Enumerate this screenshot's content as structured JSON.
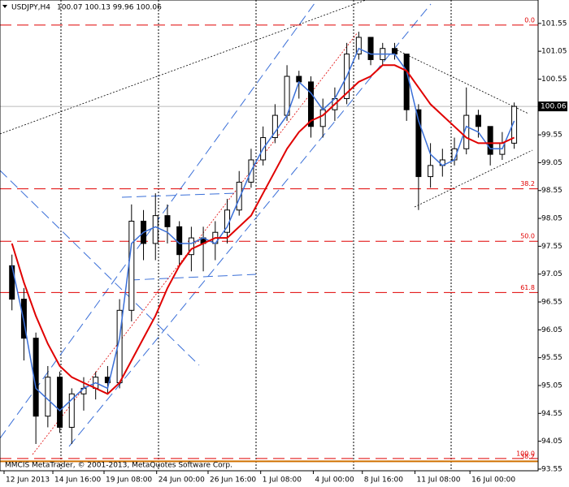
{
  "header": {
    "symbol": "USDJPY,H4",
    "quote": "100.07 100.13 99.96 100.06"
  },
  "footer": "MMCIS MetaTrader, © 2001-2013, MetaQuotes Software Corp.",
  "chart_data": {
    "type": "candlestick",
    "x": [
      1,
      2,
      3,
      4,
      5,
      6,
      7,
      8,
      9,
      10,
      11,
      12,
      13,
      14,
      15,
      16,
      17,
      18,
      19,
      20,
      21,
      22,
      23,
      24,
      25,
      26,
      27,
      28,
      29,
      30,
      31,
      32,
      33,
      34,
      35,
      36,
      37,
      38,
      39,
      40,
      41,
      42,
      43
    ],
    "open": [
      97.2,
      96.6,
      95.9,
      94.5,
      95.2,
      94.3,
      94.9,
      95.0,
      95.2,
      95.1,
      96.4,
      98.0,
      97.6,
      98.1,
      97.9,
      97.4,
      97.7,
      97.6,
      97.8,
      98.2,
      98.7,
      99.1,
      99.5,
      99.9,
      100.6,
      100.5,
      99.7,
      100.0,
      100.2,
      101.0,
      101.3,
      100.9,
      101.1,
      101.0,
      100.0,
      98.8,
      99.0,
      99.1,
      99.3,
      99.9,
      99.7,
      99.2,
      99.4
    ],
    "high": [
      97.4,
      96.8,
      96.0,
      95.4,
      95.3,
      95.0,
      95.2,
      95.3,
      95.4,
      96.6,
      98.3,
      98.2,
      98.5,
      98.3,
      98.0,
      97.9,
      97.9,
      98.0,
      98.4,
      98.9,
      99.3,
      99.7,
      100.1,
      100.8,
      100.7,
      100.6,
      100.2,
      100.4,
      101.2,
      101.4,
      101.3,
      101.2,
      101.2,
      101.0,
      100.1,
      99.4,
      99.3,
      99.5,
      100.4,
      100.0,
      99.7,
      99.6,
      100.13
    ],
    "low": [
      96.4,
      95.5,
      94.0,
      94.3,
      94.2,
      94.0,
      94.6,
      94.8,
      94.9,
      95.0,
      96.2,
      97.3,
      97.3,
      97.6,
      97.2,
      97.1,
      97.1,
      97.3,
      97.6,
      98.1,
      98.6,
      99.0,
      99.4,
      99.8,
      100.2,
      99.5,
      99.5,
      99.8,
      100.1,
      100.9,
      100.8,
      100.8,
      100.9,
      99.8,
      98.2,
      98.6,
      98.8,
      99.0,
      99.2,
      99.5,
      99.0,
      99.1,
      99.3
    ],
    "close": [
      96.6,
      95.9,
      94.5,
      95.2,
      94.3,
      94.9,
      95.0,
      95.2,
      95.1,
      96.4,
      98.0,
      97.6,
      98.1,
      97.9,
      97.4,
      97.7,
      97.6,
      97.8,
      98.2,
      98.7,
      99.1,
      99.5,
      99.9,
      100.6,
      100.5,
      99.7,
      100.0,
      100.2,
      101.0,
      101.3,
      100.9,
      101.1,
      101.0,
      100.0,
      98.8,
      99.0,
      99.1,
      99.3,
      99.9,
      99.7,
      99.2,
      99.4,
      100.06
    ],
    "series": [
      {
        "color": "#3a6fd8",
        "values": [
          97.2,
          96.2,
          95.0,
          94.8,
          94.6,
          94.8,
          95.0,
          95.1,
          95.0,
          95.9,
          97.6,
          97.8,
          97.9,
          97.8,
          97.6,
          97.6,
          97.7,
          97.6,
          97.9,
          98.4,
          98.9,
          99.3,
          99.6,
          99.9,
          100.5,
          100.3,
          100.0,
          100.2,
          100.6,
          101.1,
          101.0,
          101.0,
          101.0,
          100.7,
          99.8,
          99.2,
          99.0,
          99.1,
          99.7,
          99.6,
          99.3,
          99.3,
          99.8
        ]
      },
      {
        "color": "#e00000",
        "values": [
          97.6,
          96.9,
          96.3,
          95.8,
          95.4,
          95.2,
          95.1,
          95.0,
          94.9,
          95.1,
          95.5,
          95.9,
          96.3,
          96.8,
          97.2,
          97.5,
          97.6,
          97.7,
          97.7,
          97.9,
          98.1,
          98.5,
          98.9,
          99.3,
          99.6,
          99.8,
          99.9,
          100.1,
          100.3,
          100.5,
          100.6,
          100.8,
          100.8,
          100.7,
          100.4,
          100.1,
          99.9,
          99.7,
          99.5,
          99.4,
          99.4,
          99.4,
          99.5
        ]
      }
    ],
    "current_price": 100.06,
    "fib_levels": [
      {
        "level": "0.0",
        "price": 101.52
      },
      {
        "level": "38.2",
        "price": 98.58
      },
      {
        "level": "50.0",
        "price": 97.64
      },
      {
        "level": "61.8",
        "price": 96.72
      },
      {
        "level": "100.0",
        "price": 93.74
      },
      {
        "level": "38.2",
        "price": 93.69
      }
    ],
    "xlim": [
      0,
      45
    ],
    "ylim": [
      93.52,
      101.97
    ],
    "yticks": [
      101.55,
      101.05,
      100.55,
      99.55,
      99.05,
      98.55,
      98.05,
      97.55,
      97.05,
      96.55,
      96.05,
      95.55,
      95.05,
      94.55,
      94.05,
      93.55
    ],
    "xticks": [
      {
        "value": 0.34,
        "label": "12 Jun 2013"
      },
      {
        "value": 4.42,
        "label": "14 Jun 16:00"
      },
      {
        "value": 8.7,
        "label": "19 Jun 08:00"
      },
      {
        "value": 13.1,
        "label": "24 Jun 00:00"
      },
      {
        "value": 17.4,
        "label": "26 Jun 16:00"
      },
      {
        "value": 21.8,
        "label": "1 Jul 08:00"
      },
      {
        "value": 26.2,
        "label": "4 Jul 00:00"
      },
      {
        "value": 30.3,
        "label": "8 Jul 16:00"
      },
      {
        "value": 34.7,
        "label": "11 Jul 08:00"
      },
      {
        "value": 39.3,
        "label": "16 Jul 00:00"
      }
    ]
  }
}
